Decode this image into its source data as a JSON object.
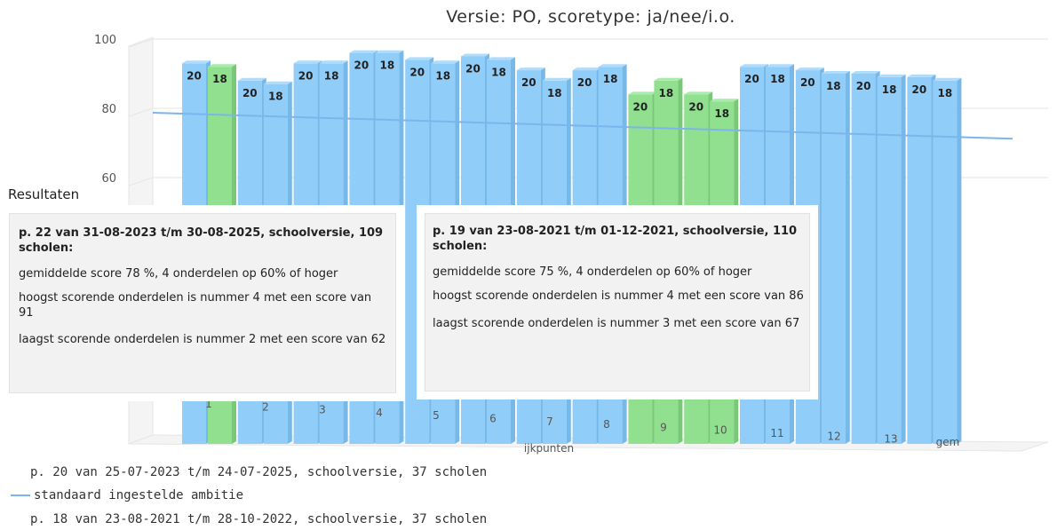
{
  "chart_data": {
    "type": "bar",
    "title": "Versie: PO, scoretype: ja/nee/i.o.",
    "xlabel": "ijkpunten",
    "ylabel": "",
    "ylim": [
      0,
      100
    ],
    "yticks": [
      60,
      80,
      100
    ],
    "grid": true,
    "categories": [
      "1",
      "2",
      "3",
      "4",
      "5",
      "6",
      "7",
      "8",
      "9",
      "10",
      "11",
      "12",
      "13",
      "gem"
    ],
    "series": [
      {
        "name": "p. 20 van 25-07-2023 t/m 24-07-2025, schoolversie, 37 scholen",
        "values": [
          93,
          88,
          93,
          96,
          94,
          95,
          91,
          91,
          84,
          84,
          92,
          91,
          90,
          89
        ],
        "labels": [
          "20",
          "20",
          "20",
          "20",
          "20",
          "20",
          "20",
          "20",
          "20",
          "20",
          "20",
          "20",
          "20",
          "20"
        ]
      },
      {
        "name": "p. 18 van 23-08-2021 t/m 28-10-2022, schoolversie, 37 scholen",
        "values": [
          92,
          87,
          93,
          96,
          93,
          94,
          88,
          92,
          88,
          82,
          92,
          90,
          89,
          88
        ],
        "labels": [
          "18",
          "18",
          "18",
          "18",
          "18",
          "18",
          "18",
          "18",
          "18",
          "18",
          "18",
          "18",
          "18",
          "18"
        ]
      }
    ],
    "highlight_color": "#90e090",
    "bar_color": "#90cdf8",
    "ambition_line": {
      "name": "standaard ingestelde ambitie",
      "start": 80,
      "end": 72,
      "color": "#7cb5ec"
    }
  },
  "results_label": "Resultaten",
  "popups": {
    "left": {
      "heading": "p. 22 van 31-08-2023 t/m 30-08-2025, schoolversie, 109 scholen:",
      "avg": "gemiddelde score 78 %, 4 onderdelen op 60% of hoger",
      "high": "hoogst scorende onderdelen is nummer 4 met een score van 91",
      "low": "laagst scorende onderdelen is nummer 2 met een score van 62"
    },
    "right": {
      "heading": "p. 19 van 23-08-2021 t/m 01-12-2021, schoolversie, 110 scholen:",
      "avg": "gemiddelde score 75 %, 4 onderdelen op 60% of hoger",
      "high": "hoogst scorende onderdelen is nummer 4 met een score van 86",
      "low": "laagst scorende onderdelen is nummer 3 met een score van 67"
    }
  },
  "legend": {
    "series1": "p. 20 van 25-07-2023 t/m 24-07-2025, schoolversie, 37 scholen",
    "ambition": "standaard ingestelde ambitie",
    "series2": "p. 18 van 23-08-2021 t/m 28-10-2022, schoolversie, 37 scholen"
  }
}
